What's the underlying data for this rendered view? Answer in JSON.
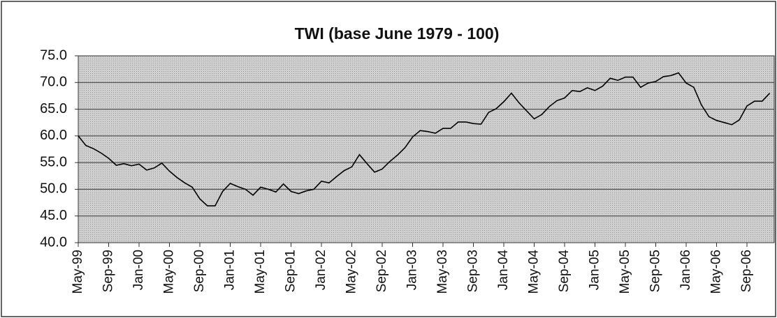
{
  "chart_data": {
    "type": "line",
    "title": "TWI (base June 1979 - 100)",
    "categories": [
      "May-99",
      null,
      null,
      null,
      "Sep-99",
      null,
      null,
      null,
      "Jan-00",
      null,
      null,
      null,
      "May-00",
      null,
      null,
      null,
      "Sep-00",
      null,
      null,
      null,
      "Jan-01",
      null,
      null,
      null,
      "May-01",
      null,
      null,
      null,
      "Sep-01",
      null,
      null,
      null,
      "Jan-02",
      null,
      null,
      null,
      "May-02",
      null,
      null,
      null,
      "Sep-02",
      null,
      null,
      null,
      "Jan-03",
      null,
      null,
      null,
      "May-03",
      null,
      null,
      null,
      "Sep-03",
      null,
      null,
      null,
      "Jan-04",
      null,
      null,
      null,
      "May-04",
      null,
      null,
      null,
      "Sep-04",
      null,
      null,
      null,
      "Jan-05",
      null,
      null,
      null,
      "May-05",
      null,
      null,
      null,
      "Sep-05",
      null,
      null,
      null,
      "Jan-06",
      null,
      null,
      null,
      "May-06",
      null,
      null,
      null,
      "Sep-06",
      null,
      null,
      null
    ],
    "values": [
      60.0,
      58.2,
      57.6,
      56.8,
      55.8,
      54.5,
      54.8,
      54.4,
      54.7,
      53.6,
      54.0,
      54.9,
      53.4,
      52.2,
      51.2,
      50.4,
      48.2,
      46.9,
      46.9,
      49.6,
      51.1,
      50.5,
      50.0,
      48.9,
      50.4,
      50.0,
      49.5,
      51.0,
      49.6,
      49.2,
      49.7,
      50.0,
      51.5,
      51.2,
      52.4,
      53.5,
      54.2,
      56.5,
      54.8,
      53.2,
      53.8,
      55.2,
      56.4,
      57.8,
      59.8,
      61.0,
      60.8,
      60.5,
      61.4,
      61.4,
      62.6,
      62.6,
      62.3,
      62.2,
      64.4,
      65.1,
      66.4,
      68.0,
      66.2,
      64.7,
      63.2,
      64.0,
      65.5,
      66.6,
      67.1,
      68.5,
      68.3,
      69.0,
      68.5,
      69.3,
      70.8,
      70.4,
      71.0,
      71.0,
      69.1,
      69.9,
      70.2,
      71.1,
      71.3,
      71.8,
      69.9,
      69.1,
      65.8,
      63.6,
      62.9,
      62.5,
      62.1,
      63.0,
      65.6,
      66.5,
      66.5,
      68.0
    ],
    "color": "#000000",
    "ylim": [
      40,
      75
    ],
    "yticks": [
      {
        "value": 40,
        "label": "40.0"
      },
      {
        "value": 45,
        "label": "45.0"
      },
      {
        "value": 50,
        "label": "50.0"
      },
      {
        "value": 55,
        "label": "55.0"
      },
      {
        "value": 60,
        "label": "60.0"
      },
      {
        "value": 65,
        "label": "65.0"
      },
      {
        "value": 70,
        "label": "70.0"
      },
      {
        "value": 75,
        "label": "75.0"
      }
    ],
    "grid": true
  }
}
